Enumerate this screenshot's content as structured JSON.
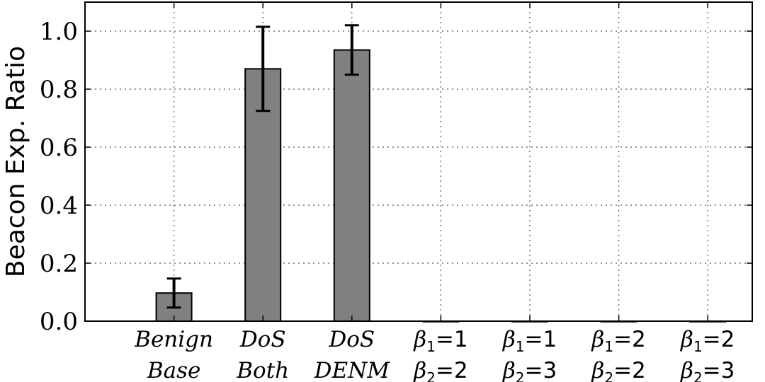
{
  "chart_data": {
    "type": "bar",
    "title": "",
    "xlabel": "",
    "ylabel": "Beacon Exp. Ratio",
    "ylim": [
      0,
      1.1
    ],
    "yticks": [
      "0.0",
      "0.2",
      "0.4",
      "0.6",
      "0.8",
      "1.0"
    ],
    "grid": true,
    "bar_color": "#808080",
    "categories": [
      {
        "lines": [
          "Benign",
          "Base"
        ],
        "style": "italic"
      },
      {
        "lines": [
          "DoS",
          "Both"
        ],
        "style": "italic"
      },
      {
        "lines": [
          "DoS",
          "DENM"
        ],
        "style": "italic"
      },
      {
        "lines": [
          "β1=1",
          "β2=2"
        ],
        "style": "beta"
      },
      {
        "lines": [
          "β1=1",
          "β2=3"
        ],
        "style": "beta"
      },
      {
        "lines": [
          "β1=2",
          "β2=2"
        ],
        "style": "beta"
      },
      {
        "lines": [
          "β1=2",
          "β2=3"
        ],
        "style": "beta"
      }
    ],
    "values": [
      0.097,
      0.87,
      0.935,
      0,
      0,
      0,
      0
    ],
    "errors": [
      0.05,
      0.145,
      0.085,
      0,
      0,
      0,
      0
    ]
  }
}
